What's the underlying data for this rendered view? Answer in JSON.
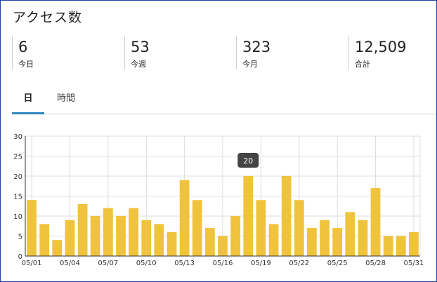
{
  "title": "アクセス数",
  "stats": [
    {
      "value": "6",
      "label": "今日"
    },
    {
      "value": "53",
      "label": "今週"
    },
    {
      "value": "323",
      "label": "今月"
    },
    {
      "value": "12,509",
      "label": "合計"
    }
  ],
  "tabs": [
    {
      "label": "日",
      "active": true
    },
    {
      "label": "時間",
      "active": false
    }
  ],
  "colors": {
    "bar": "#f0c33c",
    "tab_underline": "#2e86c1",
    "frame": "#1f3fa8",
    "tooltip": "#444444"
  },
  "chart_data": {
    "type": "bar",
    "categories": [
      "05/01",
      "05/02",
      "05/03",
      "05/04",
      "05/05",
      "05/06",
      "05/07",
      "05/08",
      "05/09",
      "05/10",
      "05/11",
      "05/12",
      "05/13",
      "05/14",
      "05/15",
      "05/16",
      "05/17",
      "05/18",
      "05/19",
      "05/20",
      "05/21",
      "05/22",
      "05/23",
      "05/24",
      "05/25",
      "05/26",
      "05/27",
      "05/28",
      "05/29",
      "05/30",
      "05/31"
    ],
    "values": [
      14,
      8,
      4,
      9,
      13,
      10,
      12,
      10,
      12,
      9,
      8,
      6,
      19,
      14,
      7,
      5,
      10,
      20,
      14,
      8,
      20,
      14,
      7,
      9,
      7,
      11,
      9,
      17,
      5,
      5,
      6
    ],
    "tick_labels": [
      "05/01",
      "05/04",
      "05/07",
      "05/10",
      "05/13",
      "05/16",
      "05/19",
      "05/22",
      "05/25",
      "05/28",
      "05/31"
    ],
    "ylim": [
      0,
      30
    ],
    "yticks": [
      0,
      5,
      10,
      15,
      20,
      25,
      30
    ],
    "grid": true,
    "tooltip": {
      "category": "05/18",
      "text": "20"
    }
  }
}
